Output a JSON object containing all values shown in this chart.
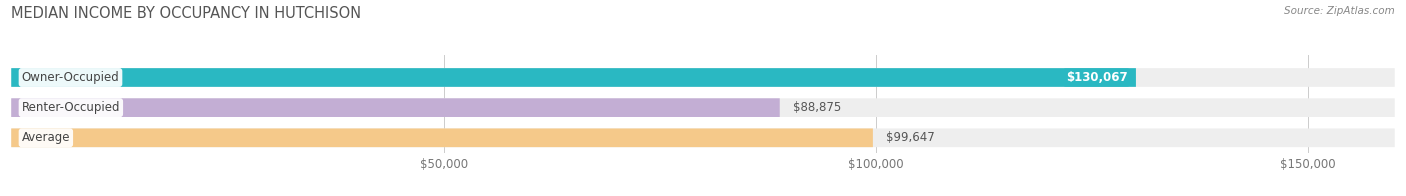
{
  "title": "MEDIAN INCOME BY OCCUPANCY IN HUTCHISON",
  "source": "Source: ZipAtlas.com",
  "categories": [
    "Owner-Occupied",
    "Renter-Occupied",
    "Average"
  ],
  "values": [
    130067,
    88875,
    99647
  ],
  "bar_colors": [
    "#2ab8c2",
    "#c3aed4",
    "#f5c98a"
  ],
  "bar_bg_colors": [
    "#eeeeee",
    "#eeeeee",
    "#eeeeee"
  ],
  "value_labels": [
    "$130,067",
    "$88,875",
    "$99,647"
  ],
  "value_inside": [
    true,
    false,
    false
  ],
  "x_ticks": [
    50000,
    100000,
    150000
  ],
  "x_tick_labels": [
    "$50,000",
    "$100,000",
    "$150,000"
  ],
  "xlim": [
    0,
    160000
  ],
  "background_color": "#ffffff",
  "title_fontsize": 10.5,
  "label_fontsize": 8.5,
  "value_fontsize": 8.5,
  "tick_fontsize": 8.5
}
